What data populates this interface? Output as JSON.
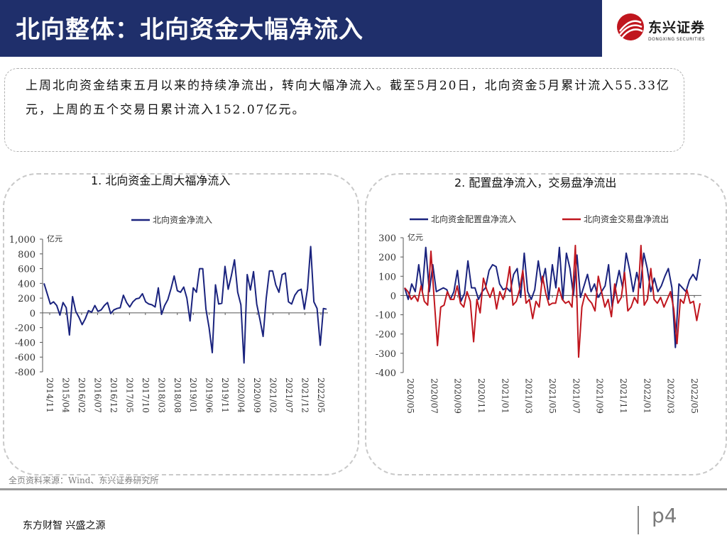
{
  "header": {
    "title": "北向整体：北向资金大幅净流入"
  },
  "logo": {
    "name_cn": "东兴证券",
    "name_en": "DONGXING SECURITIES"
  },
  "summary": {
    "text": "上周北向资金结束五月以来的持续净流出，转向大幅净流入。截至5月20日，北向资金5月累计流入55.33亿元，上周的五个交易日累计流入152.07亿元。"
  },
  "colors": {
    "navy": "#1f2f6b",
    "red": "#c0161e",
    "series1": "#1a237e"
  },
  "chart_data": [
    {
      "type": "line",
      "title": "1. 北向资金上周大福净流入",
      "unit_label": "亿元",
      "ylim": [
        -800,
        1000
      ],
      "yticks": [
        "1,000",
        "800",
        "600",
        "400",
        "200",
        "0",
        "-200",
        "-400",
        "-600",
        "-800"
      ],
      "ytick_values": [
        1000,
        800,
        600,
        400,
        200,
        0,
        -200,
        -400,
        -600,
        -800
      ],
      "xtick_labels": [
        "2014/11",
        "2015/04",
        "2016/02",
        "2016/07",
        "2016/12",
        "2017/05",
        "2017/10",
        "2018/03",
        "2018/08",
        "2019/01",
        "2019/06",
        "2019/11",
        "2020/04",
        "2020/09",
        "2021/02",
        "2021/07",
        "2021/12",
        "2022/05"
      ],
      "series": [
        {
          "name": "北向资金净流入",
          "color": "#1a237e",
          "values": [
            400,
            260,
            120,
            150,
            100,
            -30,
            140,
            70,
            -300,
            220,
            20,
            -60,
            -160,
            -80,
            30,
            10,
            100,
            20,
            40,
            100,
            140,
            -10,
            40,
            60,
            70,
            240,
            140,
            80,
            150,
            190,
            200,
            260,
            150,
            120,
            110,
            80,
            340,
            -20,
            100,
            180,
            330,
            500,
            300,
            280,
            350,
            200,
            -110,
            340,
            280,
            600,
            600,
            50,
            -200,
            -540,
            380,
            120,
            130,
            630,
            320,
            500,
            720,
            280,
            110,
            -680,
            520,
            310,
            560,
            120,
            -90,
            -320,
            200,
            570,
            570,
            380,
            280,
            520,
            540,
            150,
            120,
            240,
            300,
            320,
            50,
            330,
            900,
            150,
            60,
            -440,
            60,
            50
          ]
        }
      ]
    },
    {
      "type": "line",
      "title": "2. 配置盘净流入，交易盘净流出",
      "unit_label": "亿元",
      "ylim": [
        -400,
        300
      ],
      "yticks": [
        "300",
        "200",
        "100",
        "0",
        "-100",
        "-200",
        "-300",
        "-400"
      ],
      "ytick_values": [
        300,
        200,
        100,
        0,
        -100,
        -200,
        -300,
        -400
      ],
      "xtick_labels": [
        "2020/05",
        "2020/07",
        "2020/09",
        "2020/11",
        "2021/01",
        "2021/03",
        "2021/05",
        "2021/07",
        "2021/09",
        "2021/11",
        "2022/01",
        "2022/03",
        "2022/05"
      ],
      "series": [
        {
          "name": "北向资金配置盘净流入",
          "color": "#1a237e",
          "values": [
            40,
            -20,
            60,
            20,
            160,
            20,
            250,
            20,
            160,
            20,
            30,
            40,
            30,
            -20,
            20,
            130,
            -30,
            10,
            180,
            40,
            40,
            -20,
            20,
            40,
            130,
            160,
            150,
            60,
            30,
            40,
            20,
            110,
            140,
            -10,
            220,
            20,
            -20,
            30,
            180,
            60,
            140,
            -20,
            160,
            40,
            250,
            -20,
            220,
            140,
            0,
            210,
            -10,
            50,
            110,
            20,
            60,
            -10,
            20,
            50,
            160,
            -60,
            40,
            130,
            40,
            220,
            130,
            20,
            120,
            40,
            220,
            140,
            20,
            90,
            20,
            50,
            100,
            140,
            40,
            -270,
            60,
            40,
            20,
            80,
            110,
            80,
            190
          ]
        },
        {
          "name": "北向资金交易盘净流出",
          "color": "#c0161e",
          "values": [
            40,
            20,
            -20,
            0,
            -30,
            50,
            -30,
            -50,
            230,
            -20,
            -260,
            -60,
            -50,
            20,
            -20,
            -20,
            50,
            -40,
            -60,
            20,
            -30,
            -240,
            -20,
            -90,
            90,
            30,
            -10,
            40,
            -70,
            20,
            -20,
            40,
            150,
            -50,
            -30,
            30,
            130,
            -40,
            -20,
            -120,
            -30,
            -60,
            100,
            10,
            -50,
            -40,
            -40,
            40,
            -20,
            -40,
            -30,
            -60,
            260,
            -320,
            -60,
            10,
            -20,
            -40,
            -80,
            100,
            20,
            -60,
            -20,
            -110,
            60,
            -40,
            -10,
            120,
            -80,
            -60,
            -10,
            -40,
            260,
            -50,
            -20,
            140,
            -20,
            -40,
            -10,
            -60,
            -20,
            20,
            -70,
            -250,
            -20,
            -40,
            30,
            -40,
            -30,
            -130,
            -40
          ]
        }
      ]
    }
  ],
  "source": {
    "text": "全页资料来源：Wind、东兴证券研究所"
  },
  "footer": {
    "slogan": "东方财智 兴盛之源",
    "page": "p4"
  }
}
